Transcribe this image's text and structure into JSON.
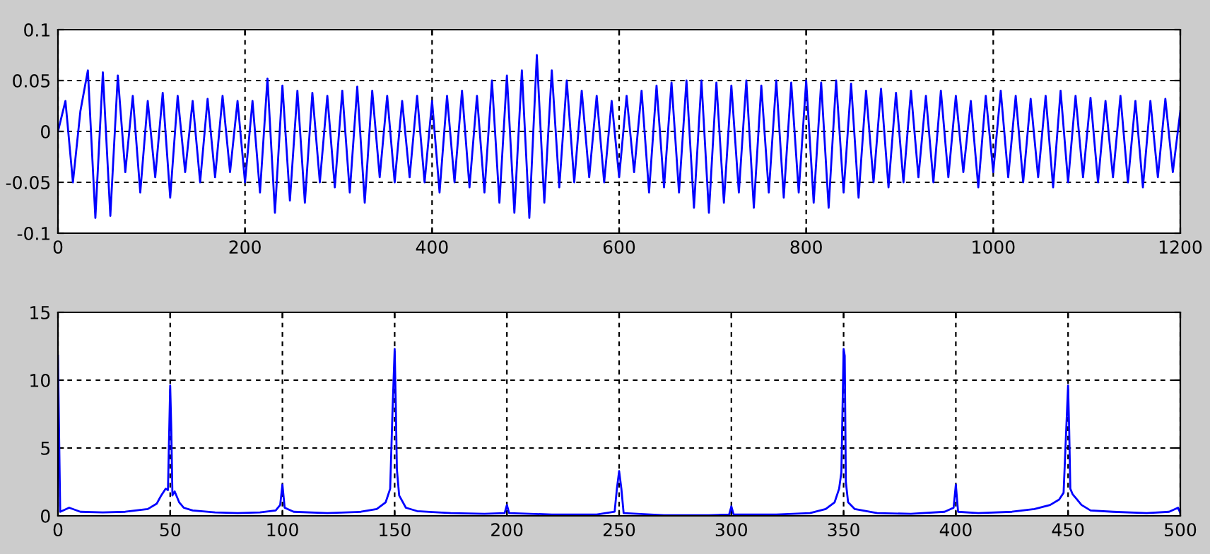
{
  "chart_data": [
    {
      "type": "line",
      "xlim": [
        0,
        1200
      ],
      "ylim": [
        -0.1,
        0.1
      ],
      "xticks": [
        0,
        200,
        400,
        600,
        800,
        1000,
        1200
      ],
      "yticks": [
        -0.1,
        -0.05,
        0,
        0.05,
        0.1
      ],
      "grid": true,
      "line_style": "solid",
      "series": [
        {
          "color": "#0000ff",
          "x": [
            0,
            8,
            16,
            24,
            32,
            40,
            48,
            56,
            64,
            72,
            80,
            88,
            96,
            104,
            112,
            120,
            128,
            136,
            144,
            152,
            160,
            168,
            176,
            184,
            192,
            200,
            208,
            216,
            224,
            232,
            240,
            248,
            256,
            264,
            272,
            280,
            288,
            296,
            304,
            312,
            320,
            328,
            336,
            344,
            352,
            360,
            368,
            376,
            384,
            392,
            400,
            408,
            416,
            424,
            432,
            440,
            448,
            456,
            464,
            472,
            480,
            488,
            496,
            504,
            512,
            520,
            528,
            536,
            544,
            552,
            560,
            568,
            576,
            584,
            592,
            600,
            608,
            616,
            624,
            632,
            640,
            648,
            656,
            664,
            672,
            680,
            688,
            696,
            704,
            712,
            720,
            728,
            736,
            744,
            752,
            760,
            768,
            776,
            784,
            792,
            800,
            808,
            816,
            824,
            832,
            840,
            848,
            856,
            864,
            872,
            880,
            888,
            896,
            904,
            912,
            920,
            928,
            936,
            944,
            952,
            960,
            968,
            976,
            984,
            992,
            1000,
            1008,
            1016,
            1024,
            1032,
            1040,
            1048,
            1056,
            1064,
            1072,
            1080,
            1088,
            1096,
            1104,
            1112,
            1120,
            1128,
            1136,
            1144,
            1152,
            1160,
            1168,
            1176,
            1184,
            1192,
            1200
          ],
          "values": [
            0,
            0.03,
            -0.05,
            0.02,
            0.06,
            -0.085,
            0.058,
            -0.083,
            0.055,
            -0.04,
            0.035,
            -0.06,
            0.03,
            -0.045,
            0.038,
            -0.065,
            0.035,
            -0.04,
            0.03,
            -0.05,
            0.032,
            -0.045,
            0.035,
            -0.04,
            0.03,
            -0.05,
            0.03,
            -0.06,
            0.052,
            -0.08,
            0.045,
            -0.068,
            0.04,
            -0.07,
            0.038,
            -0.05,
            0.035,
            -0.055,
            0.04,
            -0.06,
            0.044,
            -0.07,
            0.04,
            -0.045,
            0.035,
            -0.05,
            0.03,
            -0.045,
            0.035,
            -0.05,
            0.03,
            -0.06,
            0.035,
            -0.05,
            0.04,
            -0.055,
            0.035,
            -0.06,
            0.05,
            -0.07,
            0.055,
            -0.08,
            0.06,
            -0.085,
            0.075,
            -0.07,
            0.06,
            -0.055,
            0.05,
            -0.05,
            0.04,
            -0.045,
            0.035,
            -0.05,
            0.03,
            -0.045,
            0.035,
            -0.04,
            0.04,
            -0.06,
            0.045,
            -0.055,
            0.048,
            -0.06,
            0.05,
            -0.075,
            0.05,
            -0.08,
            0.048,
            -0.07,
            0.045,
            -0.06,
            0.05,
            -0.075,
            0.045,
            -0.06,
            0.05,
            -0.065,
            0.048,
            -0.06,
            0.05,
            -0.07,
            0.048,
            -0.075,
            0.05,
            -0.06,
            0.047,
            -0.065,
            0.04,
            -0.05,
            0.042,
            -0.055,
            0.038,
            -0.05,
            0.04,
            -0.045,
            0.035,
            -0.05,
            0.04,
            -0.045,
            0.035,
            -0.04,
            0.03,
            -0.055,
            0.035,
            -0.04,
            0.04,
            -0.045,
            0.035,
            -0.05,
            0.032,
            -0.045,
            0.035,
            -0.055,
            0.04,
            -0.05,
            0.035,
            -0.045,
            0.033,
            -0.05,
            0.03,
            -0.045,
            0.035,
            -0.05,
            0.03,
            -0.055,
            0.03,
            -0.045,
            0.032,
            -0.04,
            0.02
          ]
        }
      ]
    },
    {
      "type": "line",
      "xlim": [
        0,
        500
      ],
      "ylim": [
        0,
        15
      ],
      "xticks": [
        0,
        50,
        100,
        150,
        200,
        250,
        300,
        350,
        400,
        450,
        500
      ],
      "yticks": [
        0,
        5,
        10,
        15
      ],
      "grid": true,
      "line_style": "solid",
      "series": [
        {
          "color": "#0000ff",
          "x": [
            0,
            1,
            5,
            10,
            20,
            30,
            40,
            44,
            46,
            48,
            49,
            50,
            50.5,
            51,
            52,
            54,
            56,
            60,
            70,
            80,
            90,
            97,
            99,
            100,
            101,
            105,
            120,
            135,
            142,
            146,
            148,
            149,
            150,
            150.5,
            151,
            152,
            155,
            160,
            175,
            190,
            199,
            200,
            201,
            220,
            240,
            248,
            249,
            250,
            251,
            252,
            270,
            290,
            299,
            300,
            301,
            320,
            335,
            342,
            346,
            348,
            349,
            350,
            350.5,
            351,
            352,
            355,
            365,
            380,
            395,
            399,
            400,
            401,
            410,
            425,
            435,
            442,
            446,
            448,
            450,
            450.5,
            451,
            452,
            454,
            456,
            460,
            470,
            485,
            495,
            499,
            500
          ],
          "values": [
            11.8,
            0.3,
            0.6,
            0.3,
            0.25,
            0.3,
            0.5,
            0.9,
            1.5,
            2.0,
            1.9,
            9.6,
            6.3,
            1.5,
            1.8,
            1.0,
            0.6,
            0.4,
            0.25,
            0.2,
            0.25,
            0.4,
            0.8,
            2.3,
            0.6,
            0.3,
            0.2,
            0.3,
            0.5,
            1.0,
            2.0,
            7.5,
            12.3,
            8.2,
            3.4,
            1.5,
            0.6,
            0.35,
            0.2,
            0.15,
            0.2,
            0.8,
            0.2,
            0.1,
            0.1,
            0.3,
            2.0,
            3.3,
            2.0,
            0.2,
            0.05,
            0.05,
            0.1,
            0.7,
            0.1,
            0.1,
            0.2,
            0.5,
            1.0,
            2.0,
            3.2,
            12.3,
            11.8,
            2.5,
            1.0,
            0.5,
            0.2,
            0.15,
            0.3,
            0.6,
            2.3,
            0.3,
            0.2,
            0.3,
            0.5,
            0.8,
            1.2,
            1.7,
            9.6,
            6.3,
            2.0,
            1.6,
            1.2,
            0.8,
            0.4,
            0.3,
            0.2,
            0.3,
            0.6,
            0.2
          ]
        }
      ]
    }
  ]
}
